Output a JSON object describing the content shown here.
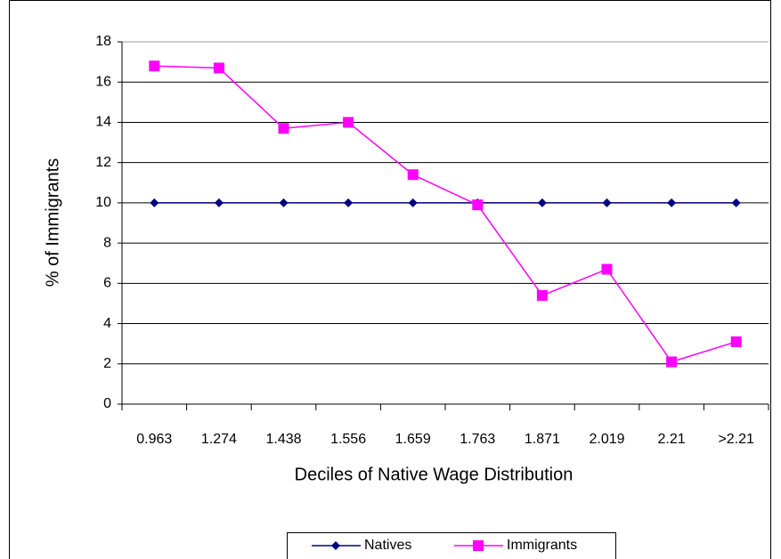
{
  "chart_data": {
    "type": "line",
    "x_label": "Deciles of Native Wage Distribution",
    "y_label": "% of Immigrants",
    "categories": [
      "0.963",
      "1.274",
      "1.438",
      "1.556",
      "1.659",
      "1.763",
      "1.871",
      "2.019",
      "2.21",
      ">2.21"
    ],
    "series": [
      {
        "name": "Natives",
        "color": "#000080",
        "marker": "diamond",
        "values": [
          10,
          10,
          10,
          10,
          10,
          10,
          10,
          10,
          10,
          10
        ]
      },
      {
        "name": "Immigrants",
        "color": "#ff00ff",
        "marker": "square",
        "values": [
          16.8,
          16.7,
          13.7,
          14.0,
          11.4,
          9.9,
          5.4,
          6.7,
          2.1,
          3.1
        ]
      }
    ],
    "ylim": [
      0,
      18
    ],
    "yticks": [
      0,
      2,
      4,
      6,
      8,
      10,
      12,
      14,
      16,
      18
    ],
    "grid": true,
    "legend": "bottom"
  }
}
